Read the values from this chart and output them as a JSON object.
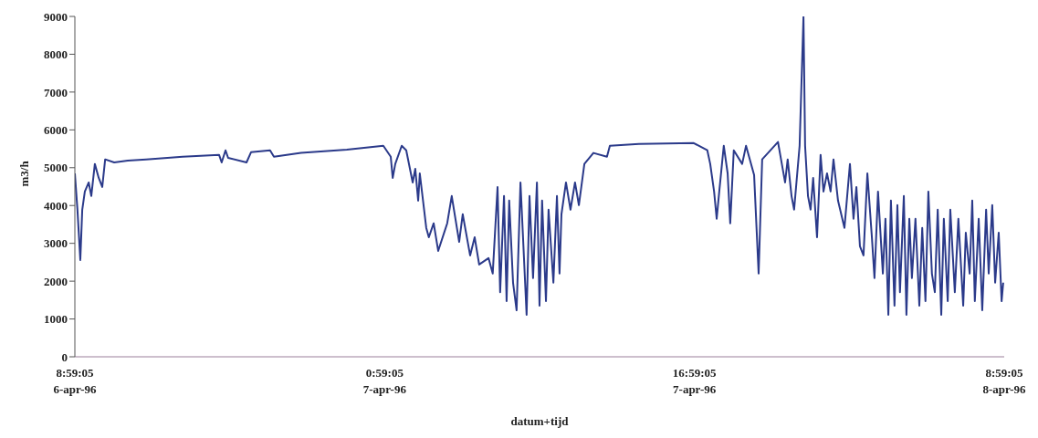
{
  "chart_data": {
    "type": "line",
    "xlabel": "datum+tijd",
    "ylabel": "m3/h",
    "xlim": [
      "1996-04-06T08:59:05",
      "1996-04-08T08:59:05"
    ],
    "xticks": [
      {
        "value": "1996-04-06T08:59:05",
        "label": "8:59:05\n6-apr-96"
      },
      {
        "value": "1996-04-07T00:59:05",
        "label": "0:59:05\n7-apr-96"
      },
      {
        "value": "1996-04-07T16:59:05",
        "label": "16:59:05\n7-apr-96"
      },
      {
        "value": "1996-04-08T08:59:05",
        "label": "8:59:05\n8-apr-96"
      }
    ],
    "ylim": [
      0,
      9000
    ],
    "yticks": [
      0,
      1000,
      2000,
      3000,
      4000,
      5000,
      6000,
      7000,
      8000,
      9000
    ],
    "grid": false,
    "marker": "none",
    "line_style": "solid",
    "series": [
      {
        "color": "#2b3a8a",
        "x": [
          "1996-04-06T08:59:05",
          "1996-04-06T09:07",
          "1996-04-06T09:16",
          "1996-04-06T09:22",
          "1996-04-06T09:30",
          "1996-04-06T09:42",
          "1996-04-06T09:50",
          "1996-04-06T10:01",
          "1996-04-06T10:13",
          "1996-04-06T10:24",
          "1996-04-06T10:33",
          "1996-04-06T11:01",
          "1996-04-06T11:43",
          "1996-04-06T12:40",
          "1996-04-06T14:33",
          "1996-04-06T16:26",
          "1996-04-06T16:34",
          "1996-04-06T16:46",
          "1996-04-06T16:54",
          "1996-04-06T17:51",
          "1996-04-06T18:05",
          "1996-04-06T19:04",
          "1996-04-06T19:16",
          "1996-04-06T20:40",
          "1996-04-06T23:02",
          "1996-04-07T00:55",
          "1996-04-07T01:18",
          "1996-04-07T01:24",
          "1996-04-07T01:32",
          "1996-04-07T01:52",
          "1996-04-07T02:06",
          "1996-04-07T02:26",
          "1996-04-07T02:34",
          "1996-04-07T02:43",
          "1996-04-07T02:48",
          "1996-04-07T03:08",
          "1996-04-07T03:16",
          "1996-04-07T03:31",
          "1996-04-07T03:45",
          "1996-04-07T04:13",
          "1996-04-07T04:27",
          "1996-04-07T04:50",
          "1996-04-07T05:01",
          "1996-04-07T05:24",
          "1996-04-07T05:38",
          "1996-04-07T05:52",
          "1996-04-07T06:21",
          "1996-04-07T06:34",
          "1996-04-07T06:49",
          "1996-04-07T06:57",
          "1996-04-07T07:09",
          "1996-04-07T07:17",
          "1996-04-07T07:25",
          "1996-04-07T07:37",
          "1996-04-07T07:48",
          "1996-04-07T08:00",
          "1996-04-07T08:19",
          "1996-04-07T08:28",
          "1996-04-07T08:39",
          "1996-04-07T08:51",
          "1996-04-07T08:59",
          "1996-04-07T09:07",
          "1996-04-07T09:19",
          "1996-04-07T09:27",
          "1996-04-07T09:42",
          "1996-04-07T09:53",
          "1996-04-07T10:01",
          "1996-04-07T10:07",
          "1996-04-07T10:21",
          "1996-04-07T10:35",
          "1996-04-07T10:49",
          "1996-04-07T11:01",
          "1996-04-07T11:18",
          "1996-04-07T11:46",
          "1996-04-07T12:28",
          "1996-04-07T12:37",
          "1996-04-07T14:07",
          "1996-04-07T16:57",
          "1996-04-07T17:39",
          "1996-04-07T17:48",
          "1996-04-07T18:00",
          "1996-04-07T18:08",
          "1996-04-07T18:16",
          "1996-04-07T18:30",
          "1996-04-07T18:42",
          "1996-04-07T18:50",
          "1996-04-07T19:01",
          "1996-04-07T19:27",
          "1996-04-07T19:39",
          "1996-04-07T20:04",
          "1996-04-07T20:18",
          "1996-04-07T20:29",
          "1996-04-07T21:18",
          "1996-04-07T21:40",
          "1996-04-07T21:48",
          "1996-04-07T22:00",
          "1996-04-07T22:08",
          "1996-04-07T22:25",
          "1996-04-07T22:37",
          "1996-04-07T22:42",
          "1996-04-07T22:51",
          "1996-04-07T22:59",
          "1996-04-07T23:07",
          "1996-04-07T23:19",
          "1996-04-07T23:30",
          "1996-04-07T23:39",
          "1996-04-07T23:50",
          "1996-04-08T00:01",
          "1996-04-08T00:10",
          "1996-04-08T00:24",
          "1996-04-08T00:44",
          "1996-04-08T01:01",
          "1996-04-08T01:12",
          "1996-04-08T01:21",
          "1996-04-08T01:32",
          "1996-04-08T01:43",
          "1996-04-08T01:55",
          "1996-04-08T02:09",
          "1996-04-08T02:17",
          "1996-04-08T02:28",
          "1996-04-08T02:43",
          "1996-04-08T02:51",
          "1996-04-08T03:00",
          "1996-04-08T03:08",
          "1996-04-08T03:19",
          "1996-04-08T03:28",
          "1996-04-08T03:36",
          "1996-04-08T03:48",
          "1996-04-08T03:56",
          "1996-04-08T04:05",
          "1996-04-08T04:13",
          "1996-04-08T04:24",
          "1996-04-08T04:36",
          "1996-04-08T04:45",
          "1996-04-08T04:55",
          "1996-04-08T05:04",
          "1996-04-08T05:15",
          "1996-04-08T05:24",
          "1996-04-08T05:33",
          "1996-04-08T05:44",
          "1996-04-08T05:52",
          "1996-04-08T06:04",
          "1996-04-08T06:12",
          "1996-04-08T06:26",
          "1996-04-08T06:37",
          "1996-04-08T06:52",
          "1996-04-08T07:00",
          "1996-04-08T07:12",
          "1996-04-08T07:20",
          "1996-04-08T07:28",
          "1996-04-08T07:40",
          "1996-04-08T07:51",
          "1996-04-08T08:03",
          "1996-04-08T08:11",
          "1996-04-08T08:22",
          "1996-04-08T08:31",
          "1996-04-08T08:42",
          "1996-04-08T08:51",
          "1996-04-08T08:56"
        ],
        "values": [
          4850,
          3900,
          2560,
          3890,
          4370,
          4610,
          4250,
          5100,
          4730,
          4490,
          5220,
          5140,
          5190,
          5220,
          5290,
          5340,
          5140,
          5460,
          5260,
          5140,
          5410,
          5460,
          5290,
          5390,
          5480,
          5580,
          5290,
          4730,
          5100,
          5580,
          5460,
          4610,
          4970,
          4130,
          4850,
          3410,
          3160,
          3530,
          2800,
          3530,
          4250,
          3040,
          3770,
          2680,
          3160,
          2440,
          2610,
          2200,
          4490,
          1710,
          4250,
          1470,
          4130,
          1960,
          1230,
          4610,
          1110,
          4250,
          2080,
          4610,
          1350,
          4130,
          1470,
          3890,
          1960,
          4250,
          2200,
          3770,
          4610,
          3890,
          4610,
          4010,
          5100,
          5390,
          5290,
          5580,
          5630,
          5650,
          5460,
          5100,
          4370,
          3650,
          4370,
          5580,
          4850,
          3530,
          5460,
          5100,
          5580,
          4810,
          2200,
          5220,
          5680,
          4610,
          5220,
          4250,
          3890,
          5580,
          9000,
          5580,
          4250,
          3890,
          4730,
          3160,
          5340,
          4370,
          4850,
          4370,
          5220,
          4130,
          3410,
          5100,
          3650,
          4490,
          2920,
          2680,
          4850,
          3160,
          2080,
          4370,
          2200,
          3650,
          1110,
          4130,
          1350,
          4010,
          1710,
          4250,
          1110,
          3650,
          2080,
          3650,
          1350,
          3410,
          1470,
          4370,
          2200,
          1710,
          3890,
          1110,
          3650,
          1470,
          3890,
          1710,
          3650,
          1350,
          3280,
          2200,
          4130,
          1470,
          3650,
          1230,
          3890,
          2200,
          4010,
          1960,
          3280,
          1470,
          1960
        ]
      }
    ]
  }
}
